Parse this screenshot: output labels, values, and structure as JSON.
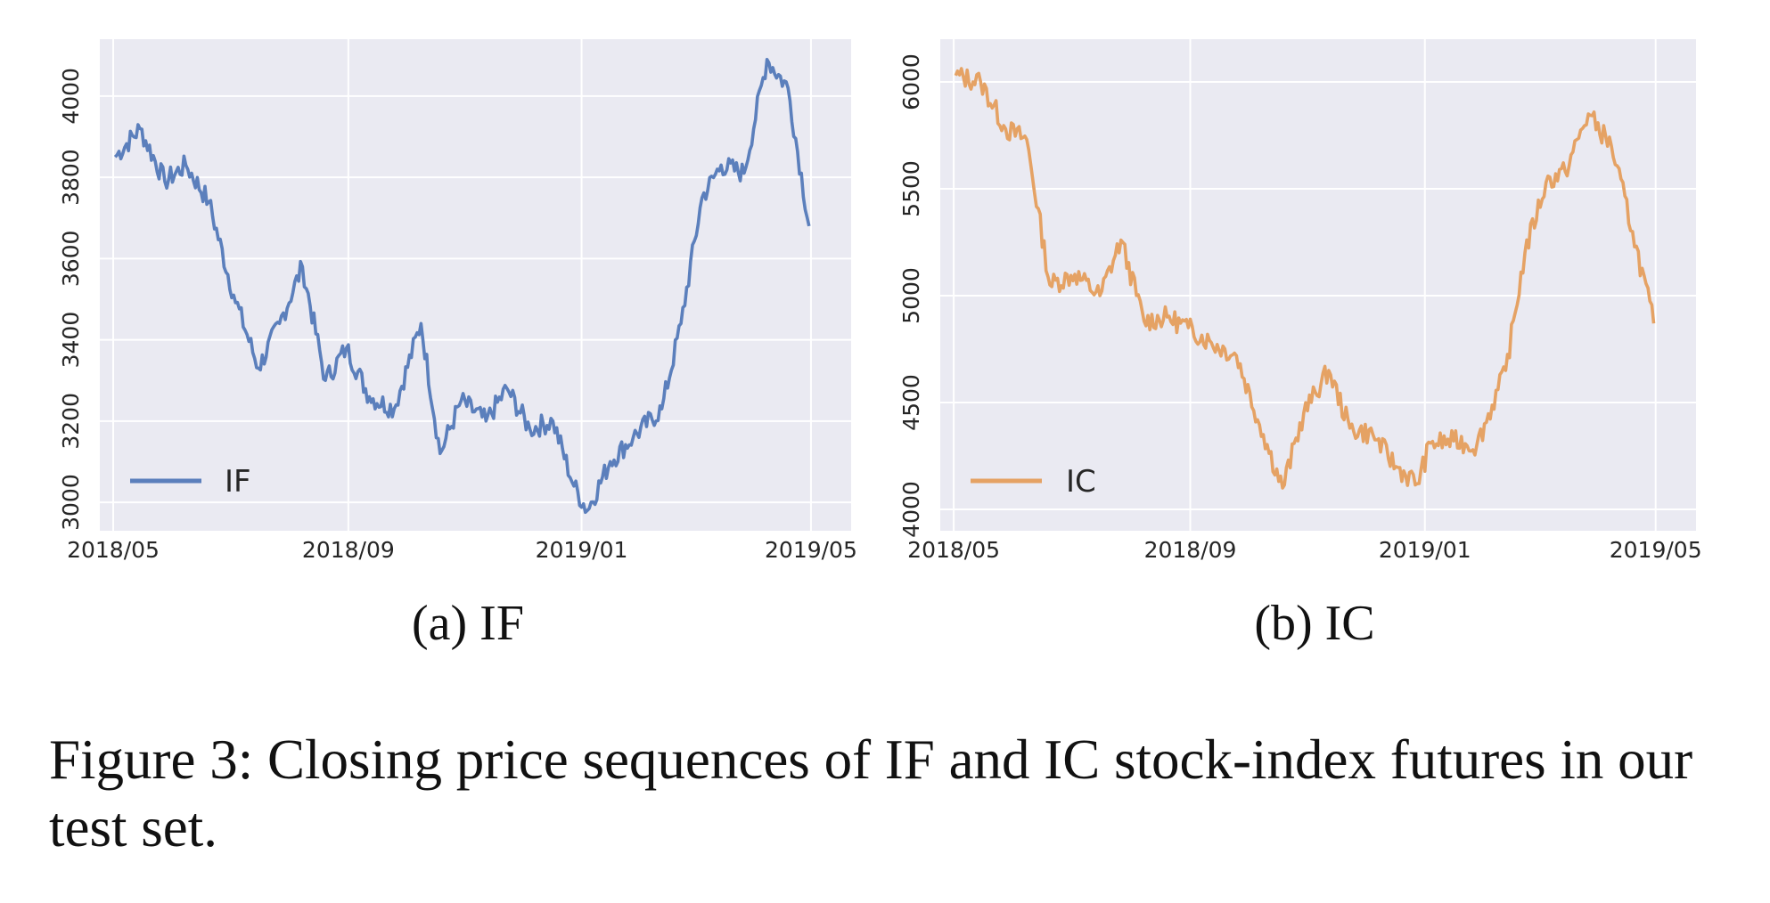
{
  "caption": "Figure 3: Closing price sequences of IF and IC stock-index futures in our test set.",
  "chart_data": [
    {
      "type": "line",
      "subcaption": "(a) IF",
      "title": "",
      "xlabel": "",
      "ylabel": "",
      "x_ticks": [
        "2018/05",
        "2018/09",
        "2019/01",
        "2019/05"
      ],
      "y_ticks": [
        3000,
        3200,
        3400,
        3600,
        3800,
        4000
      ],
      "xlim": [
        "2018-04-24",
        "2019-05-22"
      ],
      "ylim": [
        2930,
        4140
      ],
      "grid": true,
      "legend_position": "lower-left",
      "series": [
        {
          "name": "IF",
          "color": "#5b7fbc",
          "x": [
            "2018-05-02",
            "2018-05-15",
            "2018-05-28",
            "2018-06-08",
            "2018-06-20",
            "2018-07-03",
            "2018-07-16",
            "2018-07-27",
            "2018-08-08",
            "2018-08-20",
            "2018-08-31",
            "2018-09-12",
            "2018-09-25",
            "2018-10-09",
            "2018-10-19",
            "2018-10-30",
            "2018-11-12",
            "2018-11-23",
            "2018-12-05",
            "2018-12-17",
            "2018-12-28",
            "2019-01-04",
            "2019-01-16",
            "2019-01-28",
            "2019-02-12",
            "2019-02-22",
            "2019-03-05",
            "2019-03-15",
            "2019-03-27",
            "2019-04-08",
            "2019-04-19",
            "2019-04-30"
          ],
          "values": [
            3850,
            3920,
            3790,
            3830,
            3740,
            3510,
            3330,
            3440,
            3580,
            3300,
            3380,
            3260,
            3230,
            3440,
            3120,
            3250,
            3200,
            3280,
            3180,
            3200,
            3040,
            2980,
            3100,
            3160,
            3230,
            3440,
            3750,
            3830,
            3810,
            4090,
            4020,
            3680
          ]
        }
      ]
    },
    {
      "type": "line",
      "subcaption": "(b) IC",
      "title": "",
      "xlabel": "",
      "ylabel": "",
      "x_ticks": [
        "2018/05",
        "2018/09",
        "2019/01",
        "2019/05"
      ],
      "y_ticks": [
        4000,
        4500,
        5000,
        5500,
        6000
      ],
      "xlim": [
        "2018-04-24",
        "2019-05-22"
      ],
      "ylim": [
        3900,
        6200
      ],
      "grid": true,
      "legend_position": "lower-left",
      "series": [
        {
          "name": "IC",
          "color": "#e5a264",
          "x": [
            "2018-05-02",
            "2018-05-15",
            "2018-05-28",
            "2018-06-08",
            "2018-06-20",
            "2018-07-03",
            "2018-07-16",
            "2018-07-27",
            "2018-08-08",
            "2018-08-20",
            "2018-08-31",
            "2018-09-12",
            "2018-09-25",
            "2018-10-09",
            "2018-10-19",
            "2018-10-30",
            "2018-11-12",
            "2018-11-23",
            "2018-12-05",
            "2018-12-17",
            "2018-12-28",
            "2019-01-04",
            "2019-01-16",
            "2019-01-28",
            "2019-02-12",
            "2019-02-22",
            "2019-03-05",
            "2019-03-15",
            "2019-03-27",
            "2019-04-08",
            "2019-04-19",
            "2019-04-30"
          ],
          "values": [
            6030,
            6000,
            5780,
            5730,
            5050,
            5100,
            5000,
            5260,
            4880,
            4900,
            4850,
            4780,
            4720,
            4350,
            4100,
            4450,
            4650,
            4380,
            4350,
            4200,
            4120,
            4310,
            4320,
            4300,
            4650,
            5200,
            5530,
            5580,
            5850,
            5700,
            5300,
            4870
          ]
        }
      ]
    }
  ]
}
